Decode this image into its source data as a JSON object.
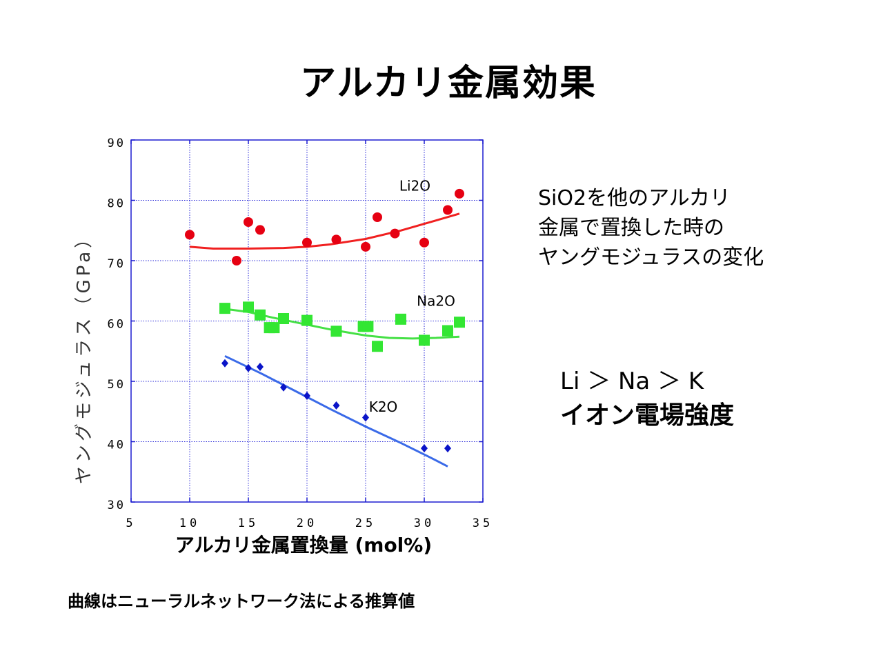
{
  "title": "アルカリ金属効果",
  "description": [
    "SiO2を他のアルカリ",
    "金属で置換した時の",
    "ヤングモジュラスの変化"
  ],
  "inequality": "Li ＞ Na ＞ K",
  "inequality_sub": "イオン電場強度",
  "footnote": "曲線はニューラルネットワーク法による推算値",
  "chart_data": {
    "type": "scatter",
    "title": "",
    "xlabel": "アルカリ金属置換量 (mol%)",
    "ylabel": "ヤングモジュラス（GPa）",
    "xlim": [
      5,
      35
    ],
    "ylim": [
      30,
      90
    ],
    "xticks": [
      5,
      10,
      15,
      20,
      25,
      30,
      35
    ],
    "yticks": [
      30,
      40,
      50,
      60,
      70,
      80,
      90
    ],
    "grid": true,
    "series": [
      {
        "name": "Li2O",
        "marker": "circle",
        "color": "#e60012",
        "points": [
          [
            10,
            74.3
          ],
          [
            14,
            70.0
          ],
          [
            15,
            76.4
          ],
          [
            16,
            75.1
          ],
          [
            20,
            73.0
          ],
          [
            22.5,
            73.5
          ],
          [
            25,
            72.3
          ],
          [
            26,
            77.2
          ],
          [
            27.5,
            74.5
          ],
          [
            30,
            73.0
          ],
          [
            32,
            78.4
          ],
          [
            33,
            81.1
          ]
        ],
        "fit": [
          [
            10,
            72.3
          ],
          [
            12,
            72.0
          ],
          [
            15,
            72.0
          ],
          [
            18,
            72.1
          ],
          [
            20,
            72.3
          ],
          [
            22,
            72.7
          ],
          [
            25,
            73.6
          ],
          [
            28,
            75.0
          ],
          [
            30,
            76.1
          ],
          [
            33,
            77.8
          ]
        ]
      },
      {
        "name": "Na2O",
        "marker": "square",
        "color": "#33e633",
        "points": [
          [
            13,
            62.1
          ],
          [
            15,
            62.3
          ],
          [
            16,
            61.0
          ],
          [
            16.8,
            58.9
          ],
          [
            17.2,
            58.9
          ],
          [
            18,
            60.4
          ],
          [
            20,
            60.1
          ],
          [
            22.5,
            58.3
          ],
          [
            24.8,
            59.1
          ],
          [
            25.2,
            59.1
          ],
          [
            26,
            55.8
          ],
          [
            28,
            60.3
          ],
          [
            30,
            56.8
          ],
          [
            32,
            58.4
          ],
          [
            33,
            59.8
          ]
        ],
        "fit": [
          [
            13,
            62.0
          ],
          [
            15,
            61.5
          ],
          [
            17,
            60.6
          ],
          [
            20,
            59.4
          ],
          [
            22,
            58.6
          ],
          [
            25,
            57.6
          ],
          [
            27,
            57.2
          ],
          [
            29,
            57.1
          ],
          [
            31,
            57.2
          ],
          [
            33,
            57.4
          ]
        ]
      },
      {
        "name": "K2O",
        "marker": "diamond",
        "color": "#0a14c8",
        "points": [
          [
            13,
            53.0
          ],
          [
            15,
            52.2
          ],
          [
            16,
            52.4
          ],
          [
            18,
            49.0
          ],
          [
            20,
            47.6
          ],
          [
            22.5,
            46.0
          ],
          [
            25,
            44.0
          ],
          [
            30,
            38.9
          ],
          [
            32,
            38.9
          ]
        ],
        "fit": [
          [
            13,
            54.2
          ],
          [
            16,
            51.4
          ],
          [
            19,
            48.4
          ],
          [
            22,
            45.4
          ],
          [
            25,
            42.5
          ],
          [
            28,
            39.8
          ],
          [
            30.5,
            37.4
          ],
          [
            32,
            35.9
          ]
        ]
      }
    ]
  }
}
